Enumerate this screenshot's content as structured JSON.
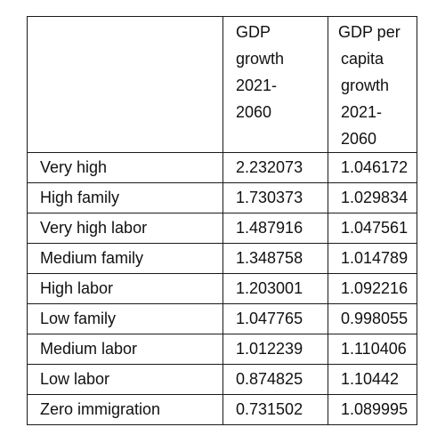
{
  "table": {
    "headers": {
      "label": "",
      "gdp_growth": [
        "GDP",
        "growth",
        "2021-",
        "2060"
      ],
      "gdp_per_capita_growth": [
        " GDP per",
        "capita",
        "growth",
        "2021-",
        "2060"
      ]
    },
    "rows": [
      {
        "label": "Very high",
        "gdp_growth": "2.232073",
        "gdp_per_capita_growth": "1.046172"
      },
      {
        "label": "High family",
        "gdp_growth": "1.730373",
        "gdp_per_capita_growth": "1.029834"
      },
      {
        "label": "Very high labor",
        "gdp_growth": "1.487916",
        "gdp_per_capita_growth": "1.047561"
      },
      {
        "label": "Medium family",
        "gdp_growth": "1.348758",
        "gdp_per_capita_growth": "1.014789"
      },
      {
        "label": "High labor",
        "gdp_growth": "1.203001",
        "gdp_per_capita_growth": "1.092216"
      },
      {
        "label": "Low family",
        "gdp_growth": "1.047765",
        "gdp_per_capita_growth": "0.998055"
      },
      {
        "label": "Medium labor",
        "gdp_growth": "1.012239",
        "gdp_per_capita_growth": "1.110406"
      },
      {
        "label": "Low labor",
        "gdp_growth": "0.874825",
        "gdp_per_capita_growth": "1.10442"
      },
      {
        "label": "Zero immigration",
        "gdp_growth": "0.731502",
        "gdp_per_capita_growth": "1.089995"
      }
    ]
  }
}
